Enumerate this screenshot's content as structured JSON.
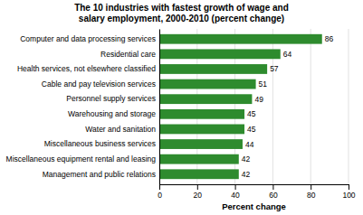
{
  "chart_data": {
    "type": "bar",
    "orientation": "horizontal",
    "title": "The 10 industries with fastest growth of wage and\nsalary employment, 2000-2010  (percent change)",
    "categories": [
      "Management and public relations",
      "Miscellaneous equipment rental and leasing",
      "Miscellaneous business services",
      "Water and sanitation",
      "Warehousing and storage",
      "Personnel supply services",
      "Cable and pay television services",
      "Health services, not elsewhere classified",
      "Residential care",
      "Computer and data processing services"
    ],
    "values": [
      42,
      42,
      44,
      45,
      45,
      49,
      51,
      57,
      64,
      86
    ],
    "color": "#2e8b2e",
    "xlabel": "Percent change",
    "xlim": [
      0,
      100
    ],
    "xticks": [
      0,
      20,
      40,
      60,
      80,
      100
    ],
    "grid": true,
    "data_labels": true
  }
}
